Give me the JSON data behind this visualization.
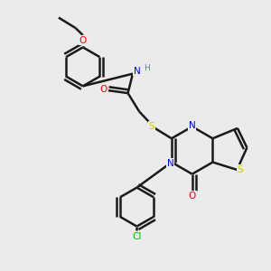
{
  "bg_color": "#ebebeb",
  "bond_color": "#1a1a1a",
  "bond_width": 1.8,
  "atom_colors": {
    "N": "#0000ee",
    "O": "#ee0000",
    "S_thio": "#cccc00",
    "S_link": "#cccc00",
    "Cl": "#00bb00",
    "H": "#3399aa",
    "C": "#1a1a1a"
  },
  "figsize": [
    3.0,
    3.0
  ],
  "dpi": 100
}
